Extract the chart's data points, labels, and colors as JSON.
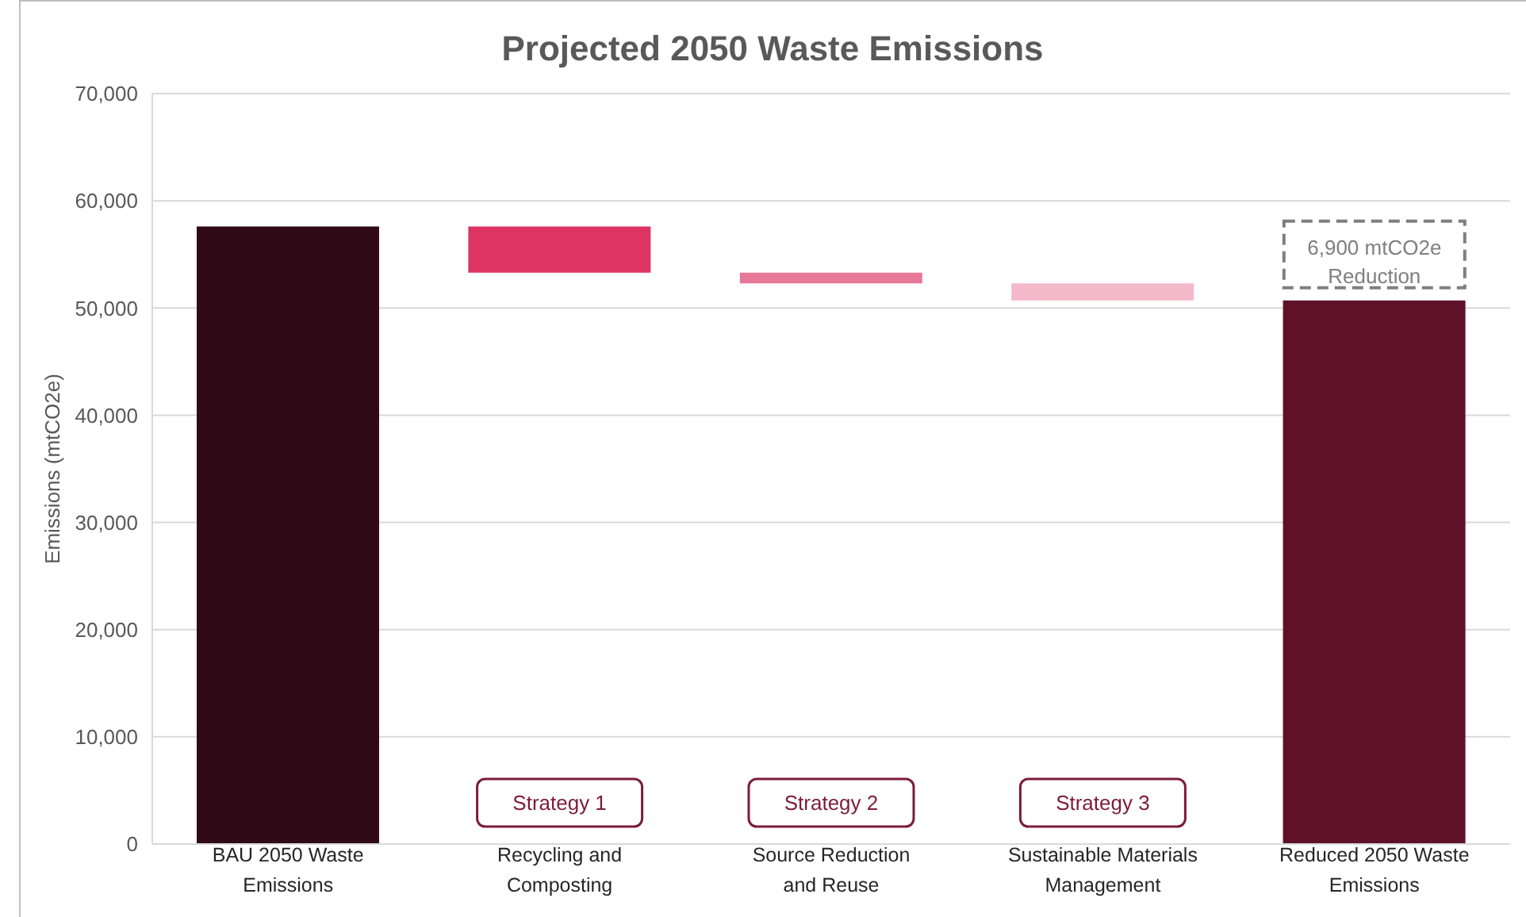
{
  "chart_data": {
    "type": "bar",
    "title": "Projected 2050 Waste Emissions",
    "ylabel": "Emissions (mtCO2e)",
    "categories": [
      "BAU 2050 Waste Emissions",
      "Recycling and Composting",
      "Source Reduction and Reuse",
      "Sustainable Materials Management",
      "Reduced 2050 Waste Emissions"
    ],
    "values": [
      57600,
      -4300,
      -1000,
      -1600,
      50700
    ],
    "base": [
      0,
      57600,
      53300,
      52300,
      0
    ],
    "colors": [
      "#300a16",
      "#dc3563",
      "#e87898",
      "#f4b8cb",
      "#5e1128"
    ],
    "ylim": [
      0,
      70000
    ],
    "yticks": [
      0,
      {
        "value": 10000,
        "label": "10,000"
      },
      {
        "value": 20000,
        "label": "20,000"
      },
      {
        "value": 30000,
        "label": "30,000"
      },
      {
        "value": 40000,
        "label": "40,000"
      },
      {
        "value": 50000,
        "label": "50,000"
      },
      {
        "value": 60000,
        "label": "60,000"
      },
      {
        "value": 70000,
        "label": "70,000"
      }
    ],
    "grid": "y",
    "annotations": [
      "Strategy 1",
      "Strategy 2",
      "Strategy 3",
      "6,900 mtCO2e Reduction"
    ]
  }
}
